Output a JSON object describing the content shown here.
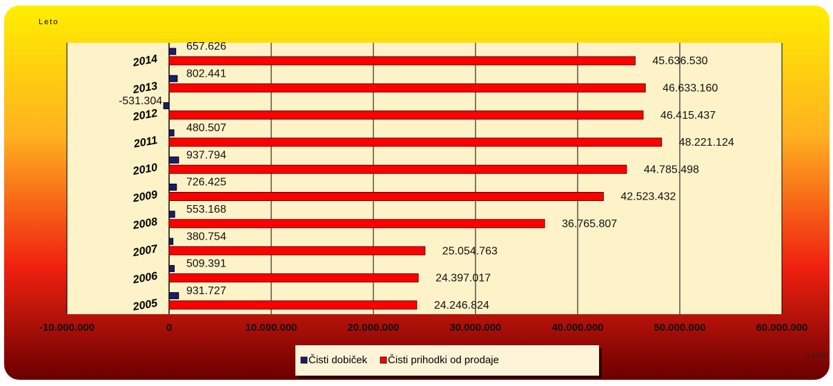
{
  "chart_data": {
    "type": "bar",
    "orientation": "horizontal",
    "y_axis_label": "Leto",
    "x_axis_label": "v EUR",
    "categories": [
      "2014",
      "2013",
      "2012",
      "2011",
      "2010",
      "2009",
      "2008",
      "2007",
      "2006",
      "2005"
    ],
    "series": [
      {
        "name": "Čisti dobiček",
        "color": "#1c1c6e",
        "values": [
          657626,
          802441,
          -531304,
          480507,
          937794,
          726425,
          553168,
          380754,
          509391,
          931727
        ],
        "value_labels": [
          "657.626",
          "802.441",
          "-531.304",
          "480.507",
          "937.794",
          "726.425",
          "553.168",
          "380.754",
          "509.391",
          "931.727"
        ]
      },
      {
        "name": "Čisti prihodki od prodaje",
        "color": "#ff0000",
        "values": [
          45636530,
          46633160,
          46415437,
          48221124,
          44785498,
          42523432,
          36765807,
          25054763,
          24397017,
          24246824
        ],
        "value_labels": [
          "45.636.530",
          "46.633.160",
          "46.415.437",
          "48.221.124",
          "44.785.498",
          "42.523.432",
          "36.765.807",
          "25.054.763",
          "24.397.017",
          "24.246.824"
        ]
      }
    ],
    "xlim": [
      -10000000,
      60000000
    ],
    "xticks": [
      {
        "value": -10000000,
        "label": "-10.000.000"
      },
      {
        "value": 0,
        "label": "0"
      },
      {
        "value": 10000000,
        "label": "10.000.000"
      },
      {
        "value": 20000000,
        "label": "20.000.000"
      },
      {
        "value": 30000000,
        "label": "30.000.000"
      },
      {
        "value": 40000000,
        "label": "40.000.000"
      },
      {
        "value": 50000000,
        "label": "50.000.000"
      },
      {
        "value": 60000000,
        "label": "60.000.000"
      }
    ],
    "grid": true,
    "legend": "bottom"
  }
}
